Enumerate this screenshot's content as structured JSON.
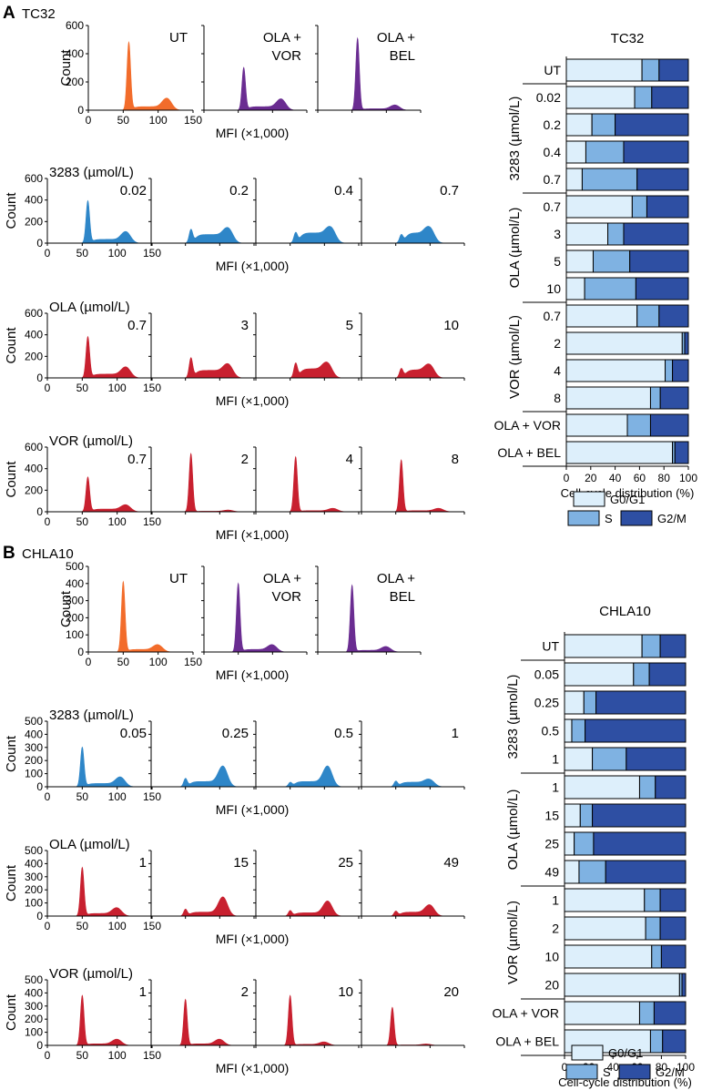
{
  "colors": {
    "ut": "#F26C2B",
    "combo": "#6A2C91",
    "i3283": "#2E86C8",
    "ola_vor": "#C8202F",
    "g0g1": "#DDEFFB",
    "s": "#7FB2E2",
    "g2m": "#2E4FA3"
  },
  "chart_data": [
    {
      "id": "A",
      "panel_letter": "A",
      "cell_line": "TC32",
      "type": "histogram-grid",
      "xlabel": "MFI (×1,000)",
      "ylabel": "Count",
      "xlim": [
        0,
        150
      ],
      "xticks": [
        "0",
        "50",
        "100",
        "150"
      ],
      "rows": [
        {
          "key": "ctrl",
          "label": "",
          "color_key": "mixed",
          "ylim": [
            0,
            600
          ],
          "yticks": [
            "0",
            "200",
            "400",
            "600"
          ],
          "panels": [
            {
              "label": "UT",
              "color_key": "ut",
              "g1_peak": 480,
              "g2_peak": 80,
              "s_level": 25,
              "g1_pos": 58,
              "g2_pos": 113
            },
            {
              "label": "OLA +\nVOR",
              "color_key": "combo",
              "g1_peak": 300,
              "g2_peak": 75,
              "s_level": 25,
              "g1_pos": 58,
              "g2_pos": 113
            },
            {
              "label": "OLA +\nBEL",
              "color_key": "combo",
              "g1_peak": 510,
              "g2_peak": 35,
              "s_level": 10,
              "g1_pos": 58,
              "g2_pos": 113
            }
          ]
        },
        {
          "key": "3283",
          "label": "3283 (µmol/L)",
          "color_key": "i3283",
          "ylim": [
            0,
            600
          ],
          "yticks": [
            "0",
            "200",
            "400",
            "600"
          ],
          "panels": [
            {
              "label": "0.02",
              "g1_peak": 390,
              "g2_peak": 100,
              "s_level": 35,
              "g1_pos": 58,
              "g2_pos": 113
            },
            {
              "label": "0.2",
              "g1_peak": 120,
              "g2_peak": 125,
              "s_level": 80,
              "g1_pos": 58,
              "g2_pos": 113
            },
            {
              "label": "0.4",
              "g1_peak": 90,
              "g2_peak": 130,
              "s_level": 95,
              "g1_pos": 58,
              "g2_pos": 110
            },
            {
              "label": "0.7",
              "g1_peak": 70,
              "g2_peak": 130,
              "s_level": 95,
              "g1_pos": 58,
              "g2_pos": 100
            }
          ]
        },
        {
          "key": "ola",
          "label": "OLA (µmol/L)",
          "color_key": "ola_vor",
          "ylim": [
            0,
            600
          ],
          "yticks": [
            "0",
            "200",
            "400",
            "600"
          ],
          "panels": [
            {
              "label": "0.7",
              "g1_peak": 380,
              "g2_peak": 95,
              "s_level": 35,
              "g1_pos": 58,
              "g2_pos": 113
            },
            {
              "label": "3",
              "g1_peak": 180,
              "g2_peak": 115,
              "s_level": 70,
              "g1_pos": 58,
              "g2_pos": 113
            },
            {
              "label": "5",
              "g1_peak": 130,
              "g2_peak": 125,
              "s_level": 85,
              "g1_pos": 58,
              "g2_pos": 105
            },
            {
              "label": "10",
              "g1_peak": 80,
              "g2_peak": 110,
              "s_level": 75,
              "g1_pos": 58,
              "g2_pos": 100
            }
          ]
        },
        {
          "key": "vor",
          "label": "VOR (µmol/L)",
          "color_key": "ola_vor",
          "ylim": [
            0,
            600
          ],
          "yticks": [
            "0",
            "200",
            "400",
            "600"
          ],
          "panels": [
            {
              "label": "0.7",
              "g1_peak": 320,
              "g2_peak": 60,
              "s_level": 25,
              "g1_pos": 58,
              "g2_pos": 113
            },
            {
              "label": "2",
              "g1_peak": 540,
              "g2_peak": 15,
              "s_level": 5,
              "g1_pos": 58,
              "g2_pos": 113
            },
            {
              "label": "4",
              "g1_peak": 510,
              "g2_peak": 30,
              "s_level": 10,
              "g1_pos": 58,
              "g2_pos": 113
            },
            {
              "label": "8",
              "g1_peak": 480,
              "g2_peak": 30,
              "s_level": 10,
              "g1_pos": 58,
              "g2_pos": 113
            }
          ]
        }
      ],
      "bar": {
        "title": "TC32",
        "type": "stacked-bar-horizontal",
        "xlabel": "Cell-cycle distribution (%)",
        "xlim": [
          0,
          100
        ],
        "xticks": [
          "0",
          "20",
          "40",
          "60",
          "80",
          "100"
        ],
        "series_names": [
          "G0/G1",
          "S",
          "G2/M"
        ],
        "groups": [
          {
            "label": "",
            "rows": [
              {
                "label": "UT",
                "values": [
                  62,
                  14,
                  24
                ]
              }
            ]
          },
          {
            "label": "3283 (µmol/L)",
            "rows": [
              {
                "label": "0.02",
                "values": [
                  56,
                  14,
                  30
                ]
              },
              {
                "label": "0.2",
                "values": [
                  21,
                  19,
                  60
                ]
              },
              {
                "label": "0.4",
                "values": [
                  16,
                  31,
                  53
                ]
              },
              {
                "label": "0.7",
                "values": [
                  13,
                  45,
                  42
                ]
              }
            ]
          },
          {
            "label": "OLA (µmol/L)",
            "rows": [
              {
                "label": "0.7",
                "values": [
                  54,
                  12,
                  34
                ]
              },
              {
                "label": "3",
                "values": [
                  34,
                  13,
                  53
                ]
              },
              {
                "label": "5",
                "values": [
                  22,
                  30,
                  48
                ]
              },
              {
                "label": "10",
                "values": [
                  15,
                  42,
                  43
                ]
              }
            ]
          },
          {
            "label": "VOR (µmol/L)",
            "rows": [
              {
                "label": "0.7",
                "values": [
                  58,
                  18,
                  24
                ]
              },
              {
                "label": "2",
                "values": [
                  95,
                  2,
                  3
                ]
              },
              {
                "label": "4",
                "values": [
                  81,
                  6,
                  13
                ]
              },
              {
                "label": "8",
                "values": [
                  69,
                  8,
                  23
                ]
              }
            ]
          },
          {
            "label": "",
            "rows": [
              {
                "label": "OLA + VOR",
                "values": [
                  50,
                  19,
                  31
                ]
              },
              {
                "label": "OLA + BEL",
                "values": [
                  87,
                  2,
                  11
                ]
              }
            ]
          }
        ]
      }
    },
    {
      "id": "B",
      "panel_letter": "B",
      "cell_line": "CHLA10",
      "type": "histogram-grid",
      "xlabel": "MFI (×1,000)",
      "ylabel": "Count",
      "xlim": [
        0,
        150
      ],
      "xticks": [
        "0",
        "50",
        "100",
        "150"
      ],
      "rows": [
        {
          "key": "ctrl",
          "label": "",
          "color_key": "mixed",
          "ylim": [
            0,
            500
          ],
          "yticks": [
            "0",
            "100",
            "200",
            "300",
            "400",
            "500"
          ],
          "panels": [
            {
              "label": "UT",
              "color_key": "ut",
              "g1_peak": 410,
              "g2_peak": 40,
              "s_level": 15,
              "g1_pos": 50,
              "g2_pos": 100
            },
            {
              "label": "OLA +\nVOR",
              "color_key": "combo",
              "g1_peak": 400,
              "g2_peak": 40,
              "s_level": 15,
              "g1_pos": 50,
              "g2_pos": 100
            },
            {
              "label": "OLA +\nBEL",
              "color_key": "combo",
              "g1_peak": 390,
              "g2_peak": 30,
              "s_level": 10,
              "g1_pos": 50,
              "g2_pos": 100
            }
          ]
        },
        {
          "key": "3283",
          "label": "3283 (µmol/L)",
          "color_key": "i3283",
          "ylim": [
            0,
            500
          ],
          "yticks": [
            "0",
            "100",
            "200",
            "300",
            "400",
            "500"
          ],
          "panels": [
            {
              "label": "0.05",
              "g1_peak": 300,
              "g2_peak": 70,
              "s_level": 25,
              "g1_pos": 50,
              "g2_pos": 105
            },
            {
              "label": "0.25",
              "g1_peak": 60,
              "g2_peak": 150,
              "s_level": 40,
              "g1_pos": 50,
              "g2_pos": 105
            },
            {
              "label": "0.5",
              "g1_peak": 30,
              "g2_peak": 150,
              "s_level": 40,
              "g1_pos": 50,
              "g2_pos": 105
            },
            {
              "label": "1",
              "g1_peak": 40,
              "g2_peak": 50,
              "s_level": 35,
              "g1_pos": 50,
              "g2_pos": 100
            }
          ]
        },
        {
          "key": "ola",
          "label": "OLA (µmol/L)",
          "color_key": "ola_vor",
          "ylim": [
            0,
            500
          ],
          "yticks": [
            "0",
            "100",
            "200",
            "300",
            "400",
            "500"
          ],
          "panels": [
            {
              "label": "1",
              "g1_peak": 370,
              "g2_peak": 60,
              "s_level": 20,
              "g1_pos": 50,
              "g2_pos": 100
            },
            {
              "label": "15",
              "g1_peak": 50,
              "g2_peak": 140,
              "s_level": 30,
              "g1_pos": 50,
              "g2_pos": 105
            },
            {
              "label": "25",
              "g1_peak": 40,
              "g2_peak": 110,
              "s_level": 25,
              "g1_pos": 50,
              "g2_pos": 105
            },
            {
              "label": "49",
              "g1_peak": 35,
              "g2_peak": 80,
              "s_level": 30,
              "g1_pos": 50,
              "g2_pos": 100
            }
          ]
        },
        {
          "key": "vor",
          "label": "VOR (µmol/L)",
          "color_key": "ola_vor",
          "ylim": [
            0,
            500
          ],
          "yticks": [
            "0",
            "100",
            "200",
            "300",
            "400",
            "500"
          ],
          "panels": [
            {
              "label": "1",
              "g1_peak": 380,
              "g2_peak": 45,
              "s_level": 12,
              "g1_pos": 50,
              "g2_pos": 100
            },
            {
              "label": "2",
              "g1_peak": 350,
              "g2_peak": 45,
              "s_level": 12,
              "g1_pos": 50,
              "g2_pos": 100
            },
            {
              "label": "10",
              "g1_peak": 380,
              "g2_peak": 25,
              "s_level": 8,
              "g1_pos": 50,
              "g2_pos": 100
            },
            {
              "label": "20",
              "g1_peak": 290,
              "g2_peak": 10,
              "s_level": 3,
              "g1_pos": 45,
              "g2_pos": 95
            }
          ]
        }
      ],
      "bar": {
        "title": "CHLA10",
        "type": "stacked-bar-horizontal",
        "xlabel": "Cell-cycle distribution (%)",
        "xlim": [
          0,
          100
        ],
        "xticks": [
          "0",
          "20",
          "40",
          "60",
          "80",
          "100"
        ],
        "series_names": [
          "G0/G1",
          "S",
          "G2/M"
        ],
        "groups": [
          {
            "label": "",
            "rows": [
              {
                "label": "UT",
                "values": [
                  64,
                  15,
                  21
                ]
              }
            ]
          },
          {
            "label": "3283 (µmol/L)",
            "rows": [
              {
                "label": "0.05",
                "values": [
                  57,
                  13,
                  30
                ]
              },
              {
                "label": "0.25",
                "values": [
                  16,
                  10,
                  74
                ]
              },
              {
                "label": "0.5",
                "values": [
                  6,
                  11,
                  83
                ]
              },
              {
                "label": "1",
                "values": [
                  23,
                  28,
                  49
                ]
              }
            ]
          },
          {
            "label": "OLA (µmol/L)",
            "rows": [
              {
                "label": "1",
                "values": [
                  62,
                  13,
                  25
                ]
              },
              {
                "label": "15",
                "values": [
                  13,
                  10,
                  77
                ]
              },
              {
                "label": "25",
                "values": [
                  8,
                  16,
                  76
                ]
              },
              {
                "label": "49",
                "values": [
                  12,
                  22,
                  66
                ]
              }
            ]
          },
          {
            "label": "VOR (µmol/L)",
            "rows": [
              {
                "label": "1",
                "values": [
                  66,
                  13,
                  21
                ]
              },
              {
                "label": "2",
                "values": [
                  67,
                  12,
                  21
                ]
              },
              {
                "label": "10",
                "values": [
                  72,
                  8,
                  20
                ]
              },
              {
                "label": "20",
                "values": [
                  95,
                  2,
                  3
                ]
              }
            ]
          },
          {
            "label": "",
            "rows": [
              {
                "label": "OLA + VOR",
                "values": [
                  62,
                  12,
                  26
                ]
              },
              {
                "label": "OLA + BEL",
                "values": [
                  71,
                  10,
                  19
                ]
              }
            ]
          }
        ]
      }
    }
  ]
}
